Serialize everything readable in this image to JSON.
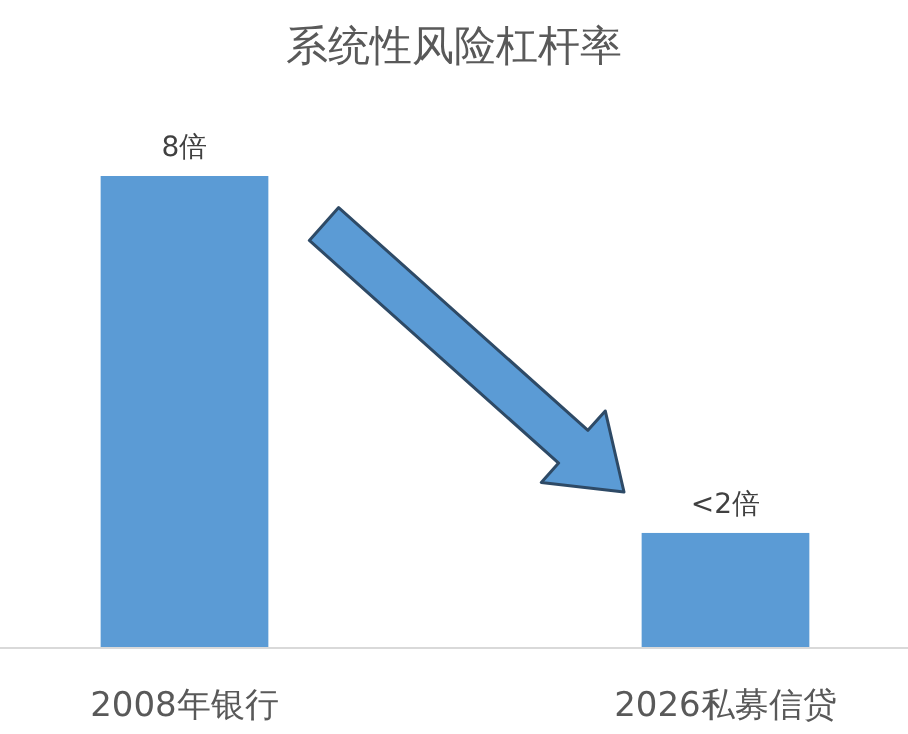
{
  "chart_data": {
    "type": "bar",
    "title": "系统性风险杠杆率",
    "categories": [
      "2008年银行",
      "2026私募信贷"
    ],
    "values": [
      8,
      1.95
    ],
    "value_labels": [
      "8倍",
      "<2倍"
    ],
    "color": "#5b9bd5"
  }
}
